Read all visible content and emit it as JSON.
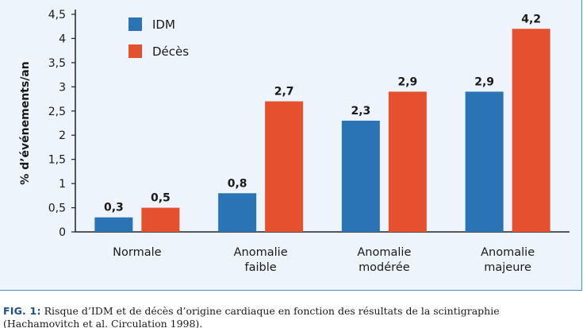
{
  "chart_data": {
    "type": "bar",
    "categories": [
      [
        "Normale"
      ],
      [
        "Anomalie",
        "faible"
      ],
      [
        "Anomalie",
        "modérée"
      ],
      [
        "Anomalie",
        "majeure"
      ]
    ],
    "series": [
      {
        "name": "IDM",
        "values": [
          0.3,
          0.8,
          2.3,
          2.9
        ],
        "labels": [
          "0,3",
          "0,8",
          "2,3",
          "2,9"
        ],
        "color": "#2a74b6"
      },
      {
        "name": "Décès",
        "values": [
          0.5,
          2.7,
          2.9,
          4.2
        ],
        "labels": [
          "0,5",
          "2,7",
          "2,9",
          "4,2"
        ],
        "color": "#e5512e"
      }
    ],
    "ylabel": "% d’événements/an",
    "ylim": [
      0,
      4.5
    ],
    "yticks": [
      0,
      0.5,
      1,
      1.5,
      2,
      2.5,
      3,
      3.5,
      4,
      4.5
    ],
    "ytick_labels": [
      "0",
      "0,5",
      "1",
      "1,5",
      "2",
      "2,5",
      "3",
      "3,5",
      "4",
      "4,5"
    ],
    "legend_position": "top-left",
    "grid": false
  },
  "caption": {
    "label": "FIG. 1:",
    "text": "Risque d’IDM et de décès d’origine cardiaque en fonction des résultats de la scintigraphie",
    "line2": "(Hachamovitch et al. Circulation 1998)."
  }
}
